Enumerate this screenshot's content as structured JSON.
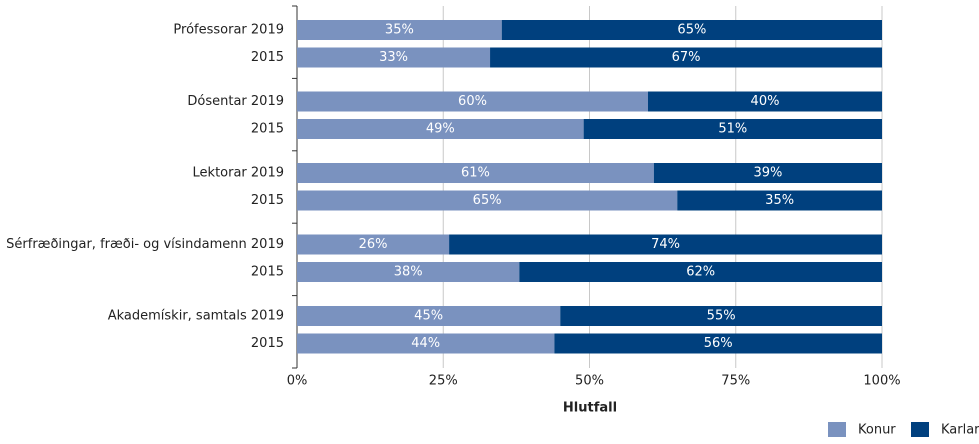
{
  "chart_data": {
    "type": "stacked-bar-horizontal",
    "categories": [
      "Prófessorar 2019",
      "2015",
      "Dósentar 2019",
      "2015",
      "Lektorar 2019",
      "2015",
      "Sérfræðingar, fræði- og vísindamenn 2019",
      "2015",
      "Akademískir, samtals 2019",
      "2015"
    ],
    "series": [
      {
        "name": "Konur",
        "color": "#7a92bf",
        "values": [
          35,
          33,
          60,
          49,
          61,
          65,
          26,
          38,
          45,
          44
        ],
        "value_labels": [
          "35%",
          "33%",
          "60%",
          "49%",
          "61%",
          "65%",
          "26%",
          "38%",
          "45%",
          "44%"
        ]
      },
      {
        "name": "Karlar",
        "color": "#00407e",
        "values": [
          65,
          67,
          40,
          51,
          39,
          35,
          74,
          62,
          55,
          56
        ],
        "value_labels": [
          "65%",
          "67%",
          "40%",
          "51%",
          "39%",
          "35%",
          "74%",
          "62%",
          "55%",
          "56%"
        ]
      }
    ],
    "xlim": [
      0,
      100
    ],
    "xticks": [
      {
        "value": 0,
        "label": "0%"
      },
      {
        "value": 25,
        "label": "25%"
      },
      {
        "value": 50,
        "label": "50%"
      },
      {
        "value": 75,
        "label": "75%"
      },
      {
        "value": 100,
        "label": "100%"
      }
    ],
    "xlabel": "Hlutfall",
    "grid": true,
    "legend": "bottom-right"
  }
}
